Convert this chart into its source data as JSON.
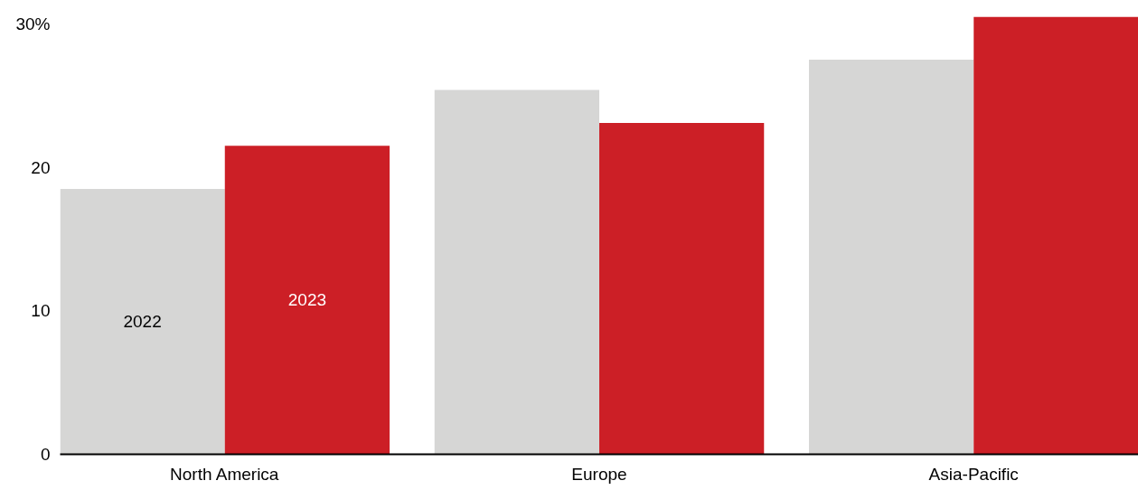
{
  "chart_data": {
    "type": "bar",
    "categories": [
      "North America",
      "Europe",
      "Asia-Pacific"
    ],
    "series": [
      {
        "name": "2022",
        "color": "#d6d6d5",
        "values": [
          18.5,
          25.4,
          27.5
        ]
      },
      {
        "name": "2023",
        "color": "#cc1f26",
        "values": [
          21.5,
          23.1,
          30.5
        ]
      }
    ],
    "ylim": [
      0,
      30.5
    ],
    "yticks": [
      0,
      10,
      20,
      {
        "value": 30,
        "label": "30%"
      }
    ],
    "grid": false
  }
}
